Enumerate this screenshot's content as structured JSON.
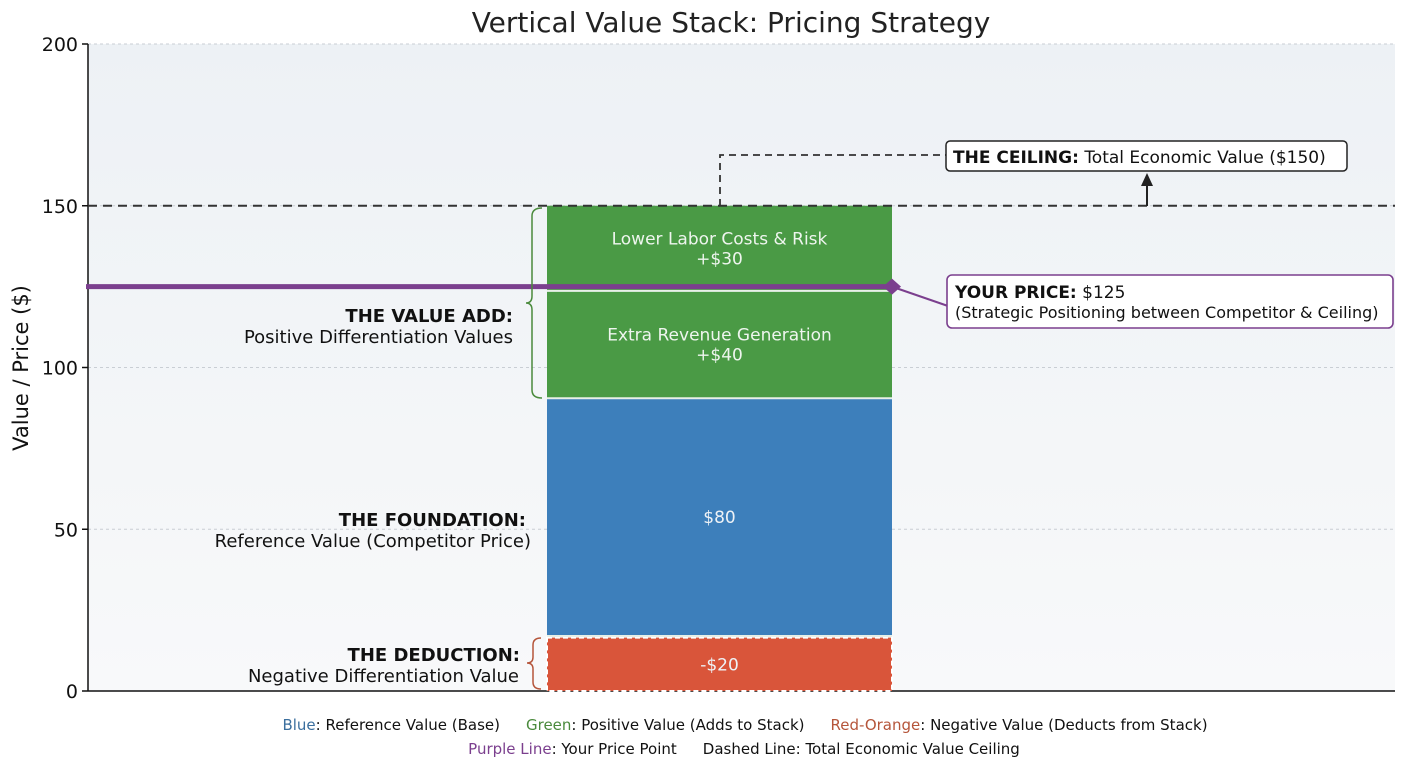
{
  "chart_data": {
    "type": "bar",
    "title": "Vertical Value Stack: Pricing Strategy",
    "ylabel": "Value / Price ($)",
    "xlabel": "",
    "ylim": [
      0,
      200
    ],
    "yticks": [
      "0",
      "50",
      "100",
      "150",
      "200"
    ],
    "grid": true,
    "segments": [
      {
        "label": "-$20",
        "value": -20,
        "bottom": 0,
        "top": 16.5,
        "color": "#d9553a",
        "dashed_outline": true
      },
      {
        "label": "$80",
        "value": 80,
        "bottom": 17,
        "top": 90.5,
        "color": "#3d7fbb"
      },
      {
        "label": "Extra Revenue Generation",
        "value_label": "+$40",
        "value": 40,
        "bottom": 90.5,
        "top": 123.7,
        "color": "#4a9a45"
      },
      {
        "label": "Lower Labor Costs & Risk",
        "value_label": "+$30",
        "value": 30,
        "bottom": 123.7,
        "top": 150,
        "color": "#4a9a45"
      }
    ],
    "ceiling": {
      "value": 150,
      "bold": "THE CEILING:",
      "text": "Total Economic Value ($150)"
    },
    "price": {
      "value": 125,
      "color": "#7b3f8e",
      "bold": "YOUR PRICE:",
      "text": "$125",
      "subtext": "(Strategic Positioning between Competitor & Ceiling)"
    },
    "annotations": {
      "value_add": {
        "bold": "THE VALUE ADD:",
        "text": "Positive Differentiation Values"
      },
      "foundation": {
        "bold": "THE FOUNDATION:",
        "text": "Reference Value (Competitor Price)"
      },
      "deduction": {
        "bold": "THE DEDUCTION:",
        "text": "Negative Differentiation Value"
      }
    },
    "legend": {
      "blue_key": "Blue",
      "blue_text": ": Reference Value (Base)",
      "blue_color": "#3b6f9e",
      "green_key": "Green",
      "green_text": ": Positive Value (Adds to Stack)",
      "green_color": "#4a8a3c",
      "red_key": "Red-Orange",
      "red_text": ": Negative Value (Deducts from Stack)",
      "red_color": "#b5553a",
      "purple_key": "Purple Line",
      "purple_text": ": Your Price Point",
      "purple_color": "#7b3f8e",
      "dashed_text": "Dashed Line: Total Economic Value Ceiling"
    }
  }
}
